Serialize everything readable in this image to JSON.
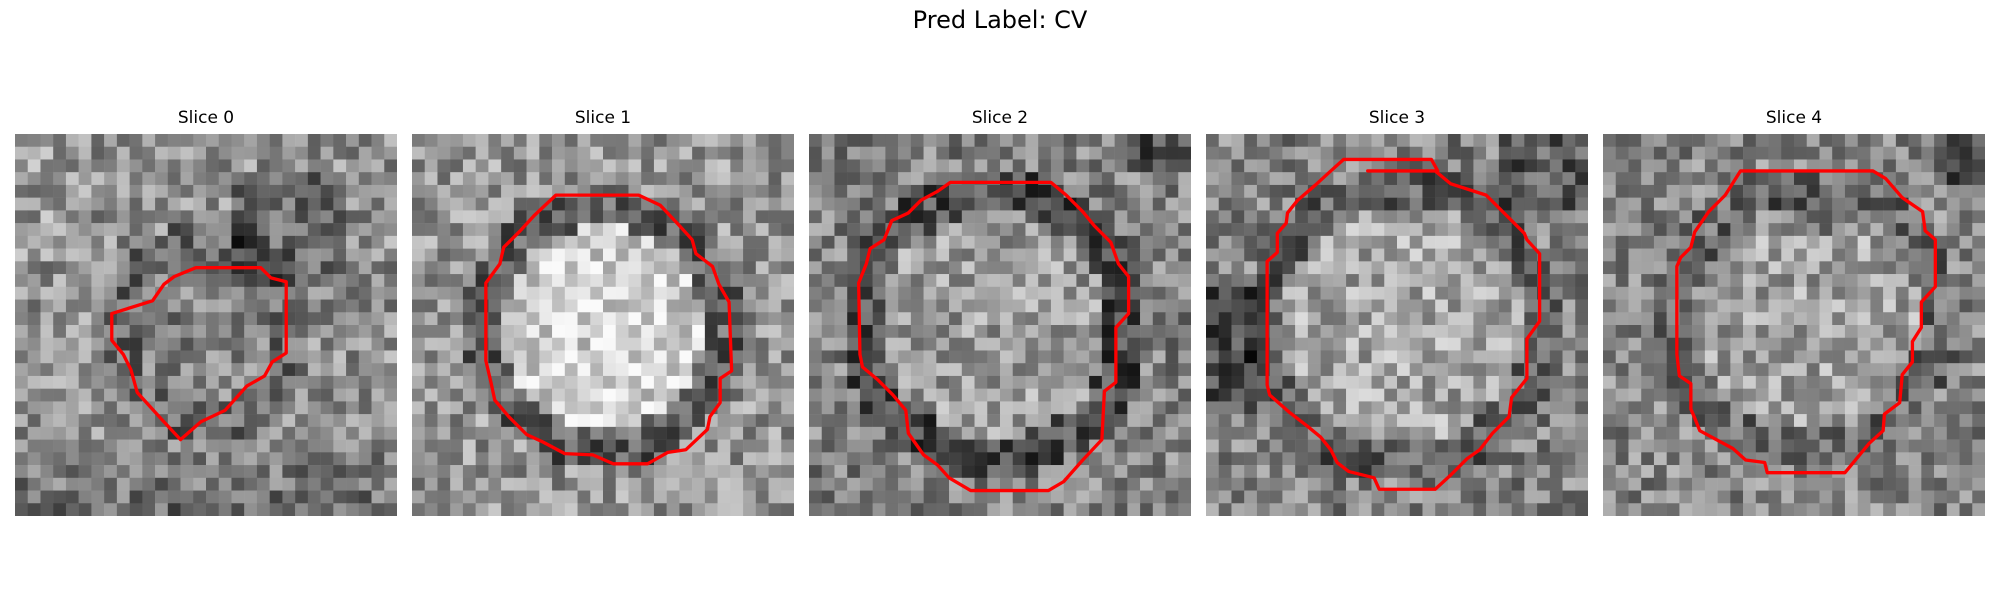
{
  "figure": {
    "title": "Pred Label: CV"
  },
  "outline_color": "#ff0000",
  "colormap": "gray",
  "slices": [
    {
      "label": "Slice 0"
    },
    {
      "label": "Slice 1"
    },
    {
      "label": "Slice 2"
    },
    {
      "label": "Slice 3"
    },
    {
      "label": "Slice 4"
    }
  ]
}
